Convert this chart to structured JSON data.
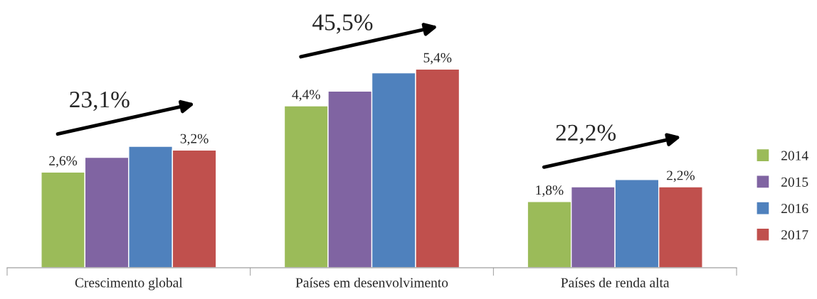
{
  "chart_data": {
    "type": "bar",
    "categories": [
      "Crescimento global",
      "Países em desenvolvimento",
      "Países de renda alta"
    ],
    "series": [
      {
        "name": "2014",
        "color": "#9bbb59",
        "values": [
          2.6,
          4.4,
          1.8
        ],
        "value_labels": [
          "2,6%",
          "4,4%",
          "1,8%"
        ]
      },
      {
        "name": "2015",
        "color": "#8064a2",
        "values": [
          3.0,
          4.8,
          2.2
        ],
        "value_labels": [
          null,
          null,
          null
        ]
      },
      {
        "name": "2016",
        "color": "#4f81bd",
        "values": [
          3.3,
          5.3,
          2.4
        ],
        "value_labels": [
          null,
          null,
          null
        ]
      },
      {
        "name": "2017",
        "color": "#c0504d",
        "values": [
          3.2,
          5.4,
          2.2
        ],
        "value_labels": [
          "3,2%",
          "5,4%",
          "2,2%"
        ]
      }
    ],
    "annotations": [
      "23,1%",
      "45,5%",
      "22,2%"
    ],
    "legend": "right",
    "grid": false
  }
}
